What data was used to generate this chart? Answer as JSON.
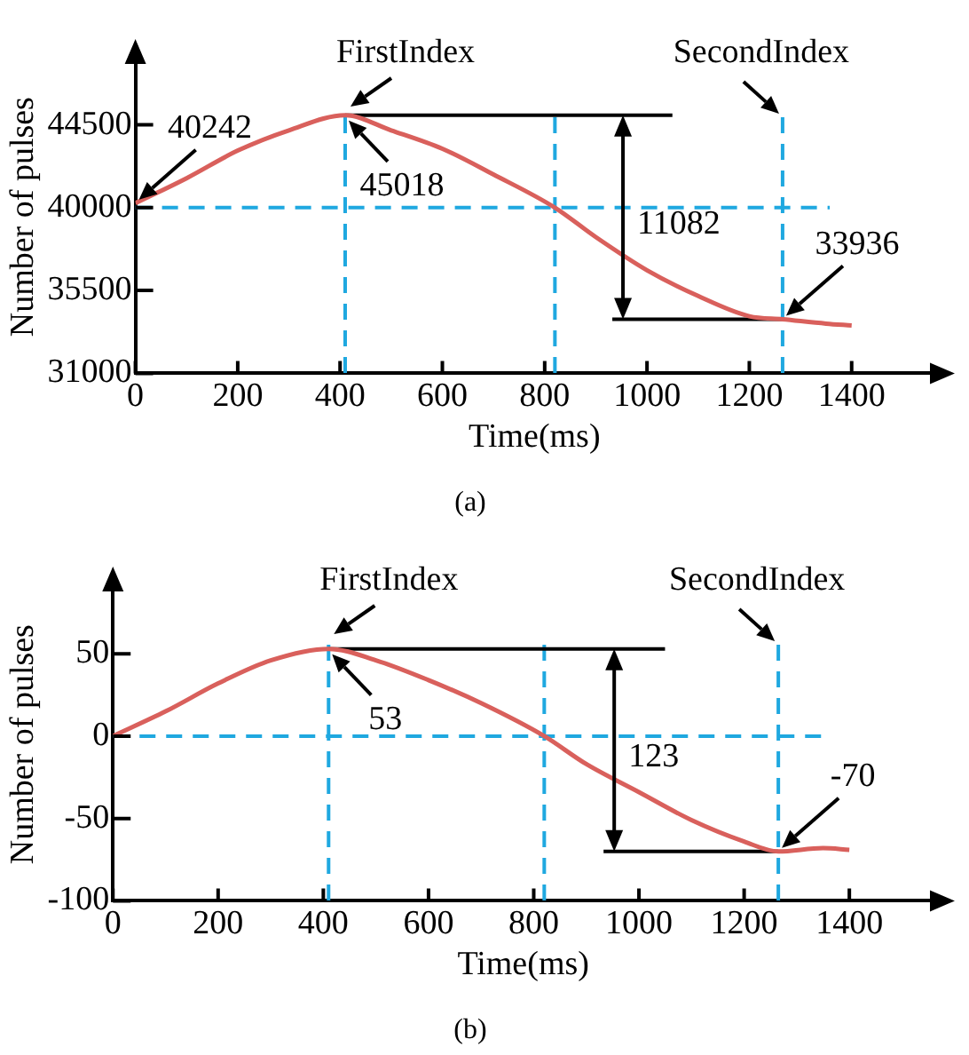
{
  "chart_data": [
    {
      "type": "line",
      "title": "(a)",
      "xlabel": "Time(ms)",
      "ylabel": "Number of pulses",
      "color": "#d9605c",
      "marker": "none",
      "x": [
        0,
        100,
        200,
        300,
        410,
        500,
        600,
        700,
        820,
        900,
        1000,
        1100,
        1200,
        1265,
        1350,
        1400
      ],
      "values": [
        40242,
        41600,
        43100,
        44200,
        45018,
        44200,
        43200,
        41800,
        40000,
        38400,
        36600,
        35200,
        34100,
        33936,
        33700,
        33600
      ],
      "xlim": [
        0,
        1560
      ],
      "xticks": [
        0,
        200,
        400,
        600,
        800,
        1000,
        1200,
        1400
      ],
      "ylim": [
        31000,
        48000
      ],
      "yticks": [
        31000,
        35500,
        40000,
        44500
      ],
      "ref_lines": [
        {
          "axis": "x",
          "value": 410,
          "label": "FirstIndex",
          "color": "#1fa8e0",
          "line_style": "dashed"
        },
        {
          "axis": "x",
          "value": 820,
          "color": "#1fa8e0",
          "line_style": "dashed"
        },
        {
          "axis": "x",
          "value": 1265,
          "label": "SecondIndex",
          "color": "#1fa8e0",
          "line_style": "dashed"
        },
        {
          "axis": "y",
          "value": 40000,
          "color": "#1fa8e0",
          "line_style": "dashed"
        },
        {
          "axis": "y",
          "value": 45018,
          "color": "#000000",
          "line_style": "solid"
        },
        {
          "axis": "y",
          "value": 33936,
          "color": "#000000",
          "line_style": "solid"
        }
      ],
      "annotations": [
        {
          "text": "40242",
          "x": 0,
          "y": 40242
        },
        {
          "text": "45018",
          "x": 410,
          "y": 45018
        },
        {
          "text": "33936",
          "x": 1265,
          "y": 33936
        },
        "11082"
      ]
    },
    {
      "type": "line",
      "title": "(b)",
      "xlabel": "Time(ms)",
      "ylabel": "Number of pulses",
      "color": "#d9605c",
      "marker": "none",
      "x": [
        0,
        100,
        200,
        300,
        410,
        500,
        600,
        700,
        820,
        900,
        1000,
        1100,
        1200,
        1265,
        1350,
        1400
      ],
      "values": [
        0,
        15,
        32,
        46,
        53,
        46,
        34,
        20,
        0,
        -17,
        -34,
        -51,
        -64,
        -70,
        -68,
        -69
      ],
      "xlim": [
        0,
        1560
      ],
      "xticks": [
        0,
        200,
        400,
        600,
        800,
        1000,
        1200,
        1400
      ],
      "ylim": [
        -100,
        90
      ],
      "yticks": [
        -100,
        -50,
        0,
        50
      ],
      "ref_lines": [
        {
          "axis": "x",
          "value": 410,
          "label": "FirstIndex",
          "color": "#1fa8e0",
          "line_style": "dashed"
        },
        {
          "axis": "x",
          "value": 820,
          "color": "#1fa8e0",
          "line_style": "dashed"
        },
        {
          "axis": "x",
          "value": 1265,
          "label": "SecondIndex",
          "color": "#1fa8e0",
          "line_style": "dashed"
        },
        {
          "axis": "y",
          "value": 0,
          "color": "#1fa8e0",
          "line_style": "dashed"
        },
        {
          "axis": "y",
          "value": 53,
          "color": "#000000",
          "line_style": "solid"
        },
        {
          "axis": "y",
          "value": -70,
          "color": "#000000",
          "line_style": "solid"
        }
      ],
      "annotations": [
        {
          "text": "53",
          "x": 410,
          "y": 53
        },
        {
          "text": "-70",
          "x": 1265,
          "y": -70
        },
        "123"
      ]
    }
  ]
}
